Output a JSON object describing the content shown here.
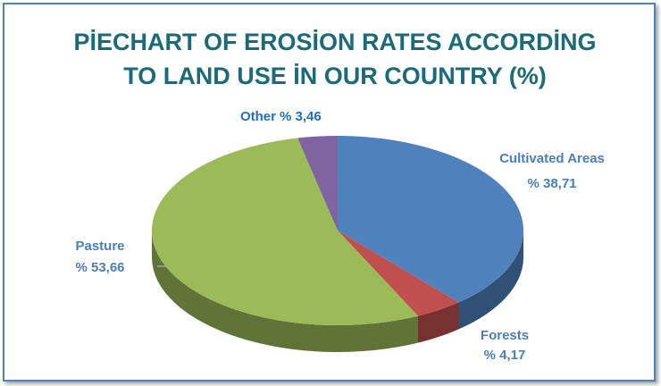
{
  "chart_data": {
    "type": "pie3d",
    "title": "PİECHART OF EROSİON RATES ACCORDİNG TO LAND USE İN OUR COUNTRY (%)",
    "categories": [
      "Cultivated Areas",
      "Forests",
      "Pasture",
      "Other"
    ],
    "values": [
      38.71,
      4.17,
      53.66,
      3.46
    ],
    "value_labels": [
      "% 38,71",
      "% 4,17",
      "% 53,66",
      "% 3,46"
    ],
    "colors": [
      "#4f81bd",
      "#c0504d",
      "#9bbb59",
      "#8064a2"
    ],
    "label_color": "#4a7ebb",
    "other_label_color": "#1f6fc0"
  }
}
